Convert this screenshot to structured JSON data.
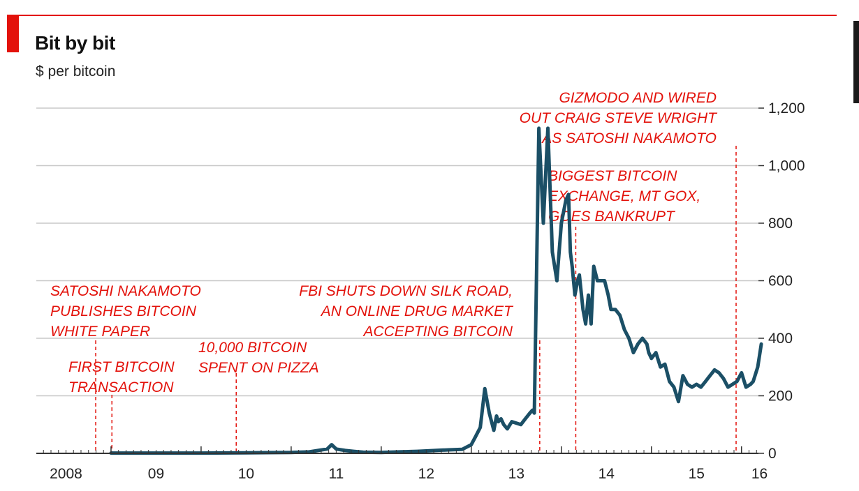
{
  "chart_data": {
    "type": "line",
    "title": "Bit by bit",
    "subtitle": "$ per bitcoin",
    "ylim": [
      0,
      1200
    ],
    "y_ticks": [
      {
        "value": 0,
        "label": "0"
      },
      {
        "value": 200,
        "label": "200"
      },
      {
        "value": 400,
        "label": "400"
      },
      {
        "value": 600,
        "label": "600"
      },
      {
        "value": 800,
        "label": "800"
      },
      {
        "value": 1000,
        "label": "1,000"
      },
      {
        "value": 1200,
        "label": "1,200"
      }
    ],
    "xlim": [
      2008,
      2016.25
    ],
    "x_ticks": [
      {
        "value": 2008.5,
        "label": "2008"
      },
      {
        "value": 2009.5,
        "label": "09"
      },
      {
        "value": 2010.5,
        "label": "10"
      },
      {
        "value": 2011.5,
        "label": "11"
      },
      {
        "value": 2012.5,
        "label": "12"
      },
      {
        "value": 2013.5,
        "label": "13"
      },
      {
        "value": 2014.5,
        "label": "14"
      },
      {
        "value": 2015.5,
        "label": "15"
      },
      {
        "value": 2016.2,
        "label": "16"
      }
    ],
    "grid": true,
    "colors": {
      "line": "#1b4f66",
      "accent": "#e3120b",
      "grid": "#c8c8c8",
      "axis": "#333333"
    },
    "series": [
      {
        "x": [
          2009.0,
          2009.5,
          2010.0,
          2010.5,
          2011.0,
          2011.2,
          2011.4,
          2011.45,
          2011.5,
          2011.6,
          2011.8,
          2012.0,
          2012.2,
          2012.4,
          2012.6,
          2012.75,
          2012.9,
          2013.0,
          2013.05,
          2013.1,
          2013.15,
          2013.2,
          2013.25,
          2013.28,
          2013.3,
          2013.33,
          2013.36,
          2013.4,
          2013.45,
          2013.55,
          2013.6,
          2013.65,
          2013.68,
          2013.7,
          2013.75,
          2013.8,
          2013.85,
          2013.9,
          2013.95,
          2014.0,
          2014.05,
          2014.08,
          2014.1,
          2014.12,
          2014.15,
          2014.18,
          2014.2,
          2014.24,
          2014.27,
          2014.3,
          2014.33,
          2014.36,
          2014.4,
          2014.44,
          2014.48,
          2014.52,
          2014.55,
          2014.6,
          2014.65,
          2014.7,
          2014.75,
          2014.8,
          2014.85,
          2014.9,
          2014.95,
          2014.97,
          2015.0,
          2015.05,
          2015.1,
          2015.15,
          2015.2,
          2015.25,
          2015.3,
          2015.35,
          2015.4,
          2015.45,
          2015.5,
          2015.55,
          2015.6,
          2015.65,
          2015.7,
          2015.75,
          2015.8,
          2015.85,
          2015.9,
          2015.95,
          2016.0,
          2016.05,
          2016.1,
          2016.13,
          2016.18,
          2016.22
        ],
        "y": [
          1,
          1,
          1,
          2,
          3,
          5,
          15,
          30,
          15,
          10,
          4,
          3,
          5,
          7,
          10,
          12,
          14,
          30,
          60,
          90,
          225,
          140,
          80,
          130,
          110,
          120,
          100,
          85,
          110,
          100,
          120,
          140,
          150,
          140,
          1130,
          800,
          1130,
          700,
          600,
          800,
          880,
          900,
          700,
          650,
          550,
          600,
          620,
          500,
          450,
          550,
          450,
          650,
          600,
          600,
          600,
          550,
          500,
          500,
          480,
          430,
          400,
          350,
          380,
          400,
          380,
          350,
          330,
          350,
          300,
          310,
          250,
          230,
          180,
          270,
          240,
          230,
          240,
          230,
          250,
          270,
          290,
          280,
          260,
          230,
          240,
          250,
          280,
          230,
          240,
          250,
          300,
          380
        ]
      }
    ],
    "annotations": [
      {
        "x": 2008.83,
        "lines": [
          "SATOSHI NAKAMOTO",
          "PUBLISHES BITCOIN",
          "WHITE PAPER"
        ],
        "anchor": "start"
      },
      {
        "x": 2009.01,
        "lines": [
          "FIRST BITCOIN",
          "TRANSACTION"
        ],
        "anchor": "start"
      },
      {
        "x": 2010.39,
        "lines": [
          "10,000 BITCOIN",
          "SPENT ON PIZZA"
        ],
        "anchor": "start"
      },
      {
        "x": 2013.76,
        "lines": [
          "FBI SHUTS DOWN SILK ROAD,",
          "AN ONLINE DRUG MARKET",
          "ACCEPTING BITCOIN"
        ],
        "anchor": "end"
      },
      {
        "x": 2014.16,
        "lines": [
          "BIGGEST BITCOIN",
          "EXCHANGE, MT GOX,",
          "GOES BANKRUPT"
        ],
        "anchor": "start"
      },
      {
        "x": 2015.94,
        "lines": [
          "GIZMODO AND WIRED",
          "OUT CRAIG STEVE WRIGHT",
          "AS SATOSHI NAKAMOTO"
        ],
        "anchor": "end"
      }
    ]
  }
}
